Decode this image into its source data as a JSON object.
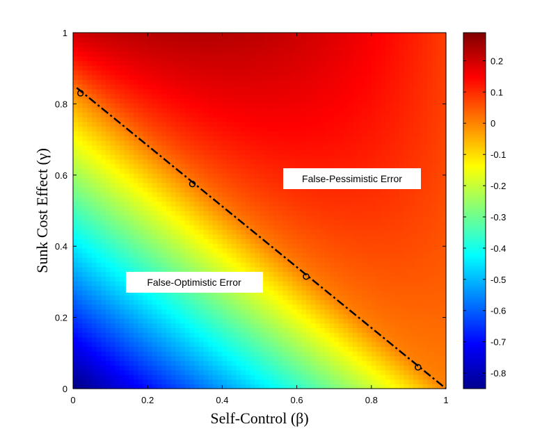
{
  "chart_data": {
    "type": "heatmap",
    "title": "",
    "xlabel": "Self-Control (β)",
    "ylabel": "Sunk Cost Effect (γ)",
    "xlim": [
      0,
      1
    ],
    "ylim": [
      0,
      1
    ],
    "xticks": [
      0,
      0.2,
      0.4,
      0.6,
      0.8,
      1
    ],
    "yticks": [
      0,
      0.2,
      0.4,
      0.6,
      0.8,
      1
    ],
    "x_tick_labels": [
      "0",
      "0.2",
      "0.4",
      "0.6",
      "0.8",
      "1"
    ],
    "y_tick_labels": [
      "0",
      "0.2",
      "0.4",
      "0.6",
      "0.8",
      "1"
    ],
    "colormap": "jet",
    "clim": [
      -0.85,
      0.29
    ],
    "colorbar": {
      "position": "right",
      "ticks": [
        0.2,
        0.1,
        0,
        -0.1,
        -0.2,
        -0.3,
        -0.4,
        -0.5,
        -0.6,
        -0.7,
        -0.8
      ],
      "tick_labels": [
        "0.2",
        "0.1",
        "0",
        "-0.1",
        "-0.2",
        "-0.3",
        "-0.4",
        "-0.5",
        "-0.6",
        "-0.7",
        "-0.8"
      ]
    },
    "grid": false,
    "corner_values": {
      "beta_0_gamma_0": -0.85,
      "beta_1_gamma_0": 0.0,
      "beta_0_gamma_1": 0.2,
      "beta_1_gamma_1": 0.1,
      "beta_0.4_gamma_1": 0.29
    },
    "zero_contour": {
      "style": "dash-dot",
      "color": "#000000",
      "x": [
        0.01,
        1.0
      ],
      "y": [
        0.845,
        0.0
      ],
      "markers": [
        {
          "x": 0.02,
          "y": 0.83
        },
        {
          "x": 0.32,
          "y": 0.575
        },
        {
          "x": 0.625,
          "y": 0.315
        },
        {
          "x": 0.925,
          "y": 0.06
        }
      ]
    },
    "annotations": [
      {
        "text": "False-Pessimistic Error",
        "x": 0.695,
        "y": 0.59
      },
      {
        "text": "False-Optimistic Error",
        "x": 0.3,
        "y": 0.3
      }
    ]
  }
}
